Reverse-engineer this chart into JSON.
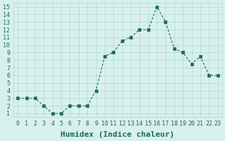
{
  "x": [
    0,
    1,
    2,
    3,
    4,
    5,
    6,
    7,
    8,
    9,
    10,
    11,
    12,
    13,
    14,
    15,
    16,
    17,
    18,
    19,
    20,
    21,
    22,
    23
  ],
  "y": [
    3,
    3,
    3,
    2,
    1,
    1,
    2,
    2,
    2,
    4,
    8.5,
    9,
    10.5,
    11,
    12,
    12,
    15,
    13,
    9.5,
    9,
    7.5,
    8.5,
    6,
    6
  ],
  "xlabel": "Humidex (Indice chaleur)",
  "ylim": [
    1,
    15
  ],
  "xlim": [
    0,
    23
  ],
  "yticks": [
    1,
    2,
    3,
    4,
    5,
    6,
    7,
    8,
    9,
    10,
    11,
    12,
    13,
    14,
    15
  ],
  "xticks": [
    0,
    1,
    2,
    3,
    4,
    5,
    6,
    7,
    8,
    9,
    10,
    11,
    12,
    13,
    14,
    15,
    16,
    17,
    18,
    19,
    20,
    21,
    22,
    23
  ],
  "line_color": "#1a6b5a",
  "marker_color": "#1a6b5a",
  "bg_color": "#d8f0ed",
  "grid_color": "#b0d8d0",
  "axis_label_color": "#1a6b5a",
  "tick_color": "#1a6b5a",
  "xlabel_fontsize": 8,
  "tick_fontsize": 6
}
